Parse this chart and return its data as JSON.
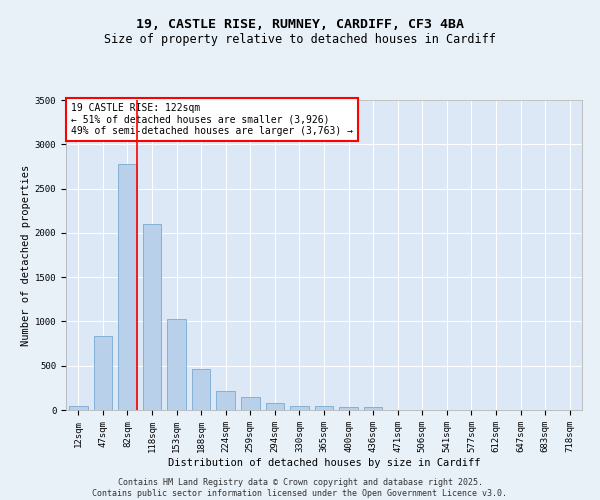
{
  "title_line1": "19, CASTLE RISE, RUMNEY, CARDIFF, CF3 4BA",
  "title_line2": "Size of property relative to detached houses in Cardiff",
  "xlabel": "Distribution of detached houses by size in Cardiff",
  "ylabel": "Number of detached properties",
  "categories": [
    "12sqm",
    "47sqm",
    "82sqm",
    "118sqm",
    "153sqm",
    "188sqm",
    "224sqm",
    "259sqm",
    "294sqm",
    "330sqm",
    "365sqm",
    "400sqm",
    "436sqm",
    "471sqm",
    "506sqm",
    "541sqm",
    "577sqm",
    "612sqm",
    "647sqm",
    "683sqm",
    "718sqm"
  ],
  "values": [
    50,
    840,
    2780,
    2100,
    1030,
    460,
    220,
    150,
    80,
    50,
    50,
    30,
    30,
    0,
    0,
    0,
    0,
    0,
    0,
    0,
    0
  ],
  "bar_color": "#b8d0ea",
  "bar_edge_color": "#6aa0cc",
  "vline_x_idx": 2,
  "annotation_text": "19 CASTLE RISE: 122sqm\n← 51% of detached houses are smaller (3,926)\n49% of semi-detached houses are larger (3,763) →",
  "annotation_box_color": "white",
  "annotation_box_edgecolor": "red",
  "vline_color": "red",
  "ylim": [
    0,
    3500
  ],
  "yticks": [
    0,
    500,
    1000,
    1500,
    2000,
    2500,
    3000,
    3500
  ],
  "background_color": "#e8f0f8",
  "plot_bg_color": "#dce8f5",
  "footer_text": "Contains HM Land Registry data © Crown copyright and database right 2025.\nContains public sector information licensed under the Open Government Licence v3.0.",
  "title_fontsize": 9.5,
  "subtitle_fontsize": 8.5,
  "axis_label_fontsize": 7.5,
  "tick_fontsize": 6.5,
  "annotation_fontsize": 7,
  "footer_fontsize": 6
}
